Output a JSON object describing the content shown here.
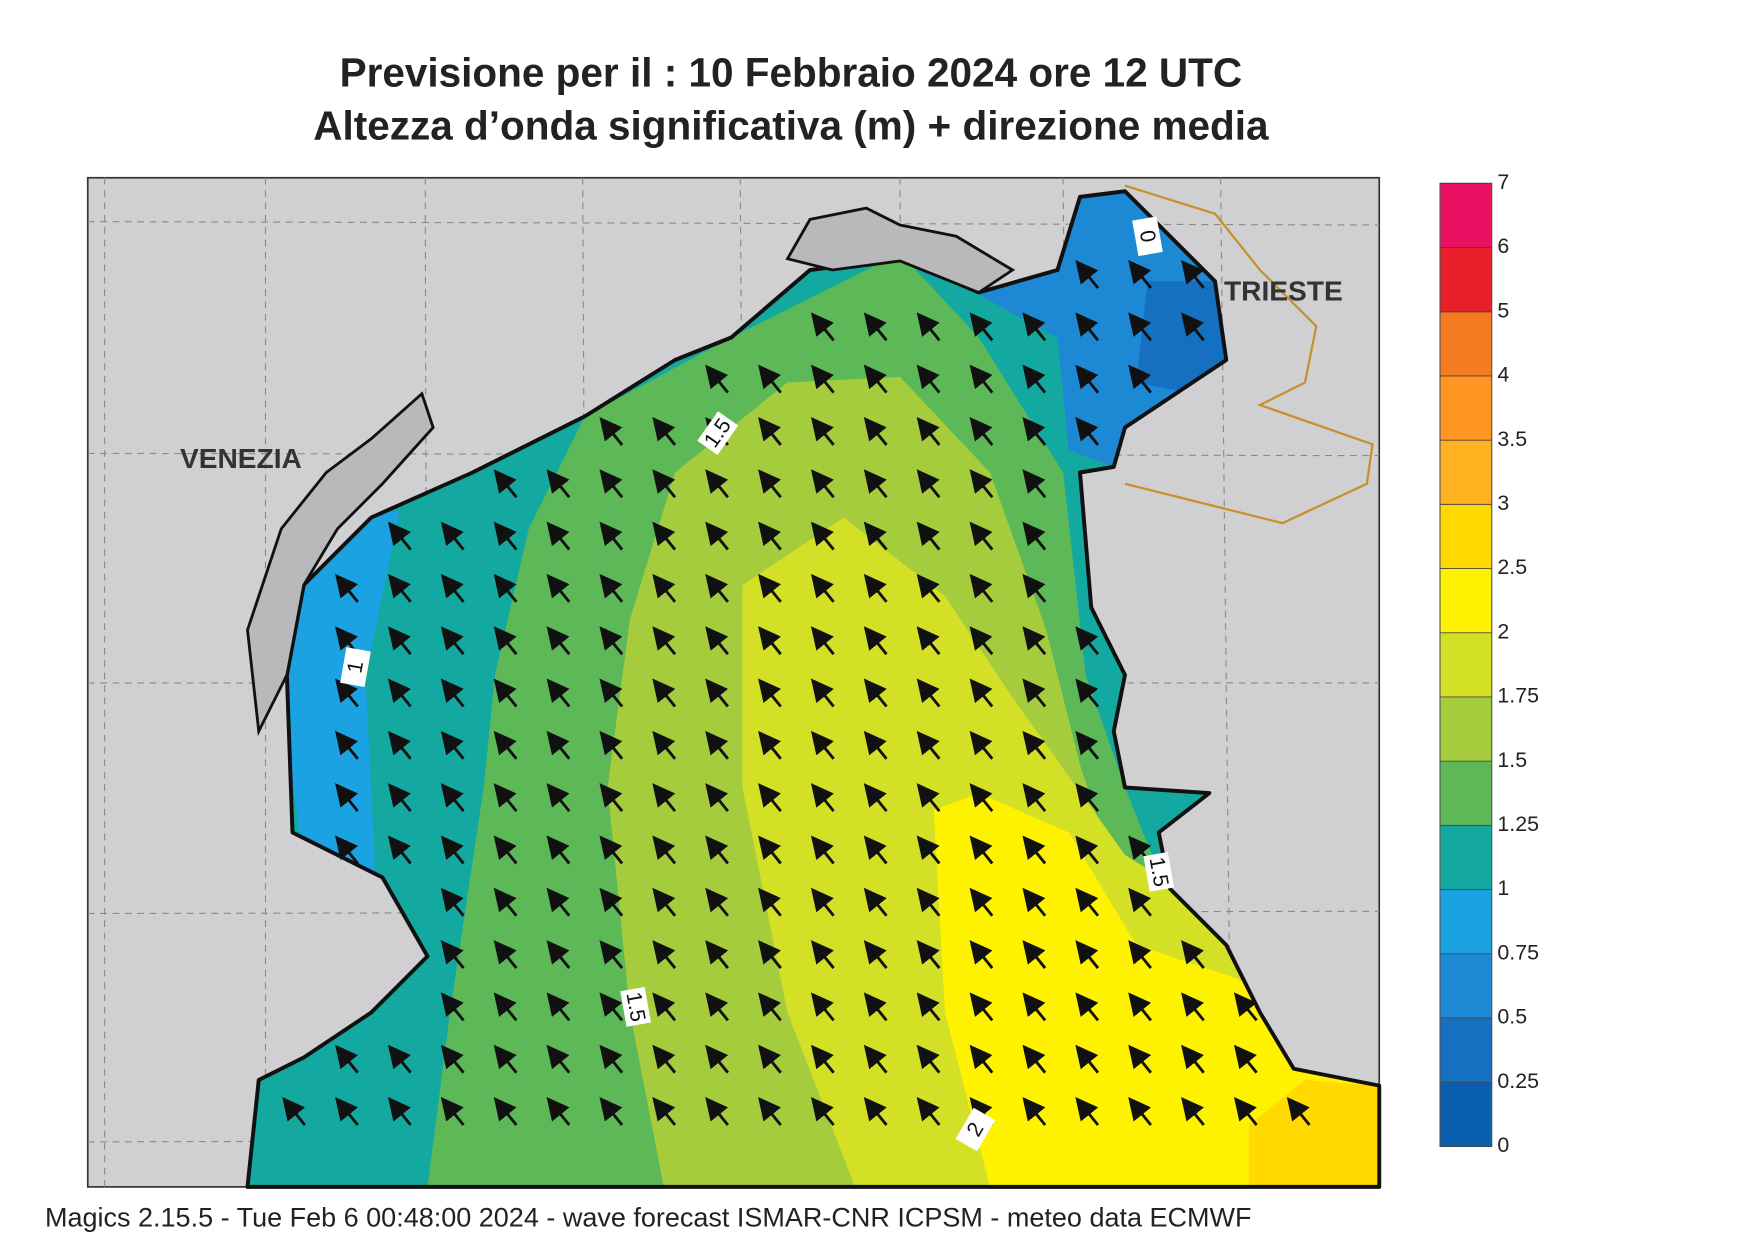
{
  "header": {
    "title": "Previsione per il  :  10  Febbraio 2024   ore 12 UTC",
    "subtitle": "Altezza d’onda significativa (m) + direzione media"
  },
  "places": [
    "VENEZIA",
    "TRIESTE"
  ],
  "contour_labels": [
    "1.5",
    "1",
    "1.5",
    "2",
    "1.5",
    "0"
  ],
  "legend": {
    "ticks": [
      0,
      0.25,
      0.5,
      0.75,
      1,
      1.25,
      1.5,
      1.75,
      2,
      2.5,
      3,
      3.5,
      4,
      5,
      6,
      7
    ],
    "colors": [
      "#0b5fb0",
      "#1670c2",
      "#1d88d3",
      "#1aa2e2",
      "#13a9a1",
      "#5db957",
      "#a5cc3d",
      "#d4e026",
      "#fff200",
      "#ffd900",
      "#ffb21f",
      "#ff9621",
      "#f47b21",
      "#e8202a",
      "#ea1163"
    ]
  },
  "footer": "Magics 2.15.5 - Tue Feb  6 00:48:00 2024 - wave forecast  ISMAR-CNR  ICPSM - meteo data    ECMWF"
}
